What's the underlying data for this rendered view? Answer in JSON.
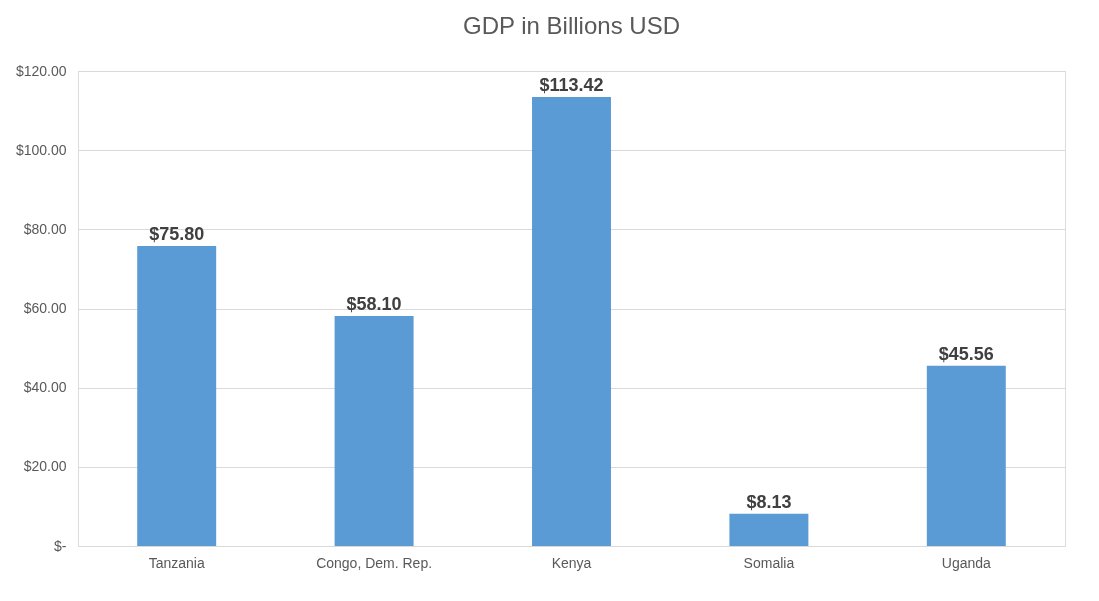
{
  "chart_data": {
    "type": "bar",
    "title": "GDP in Billions USD",
    "categories": [
      "Tanzania",
      "Congo, Dem. Rep.",
      "Kenya",
      "Somalia",
      "Uganda"
    ],
    "values": [
      75.8,
      58.1,
      113.42,
      8.13,
      45.56
    ],
    "value_labels": [
      "$75.80",
      "$58.10",
      "$113.42",
      "$8.13",
      "$45.56"
    ],
    "color": "#5b9bd5",
    "ylim": [
      0,
      120
    ],
    "yticks": [
      {
        "value": 0,
        "label": "$-"
      },
      {
        "value": 20,
        "label": "$20.00"
      },
      {
        "value": 40,
        "label": "$40.00"
      },
      {
        "value": 60,
        "label": "$60.00"
      },
      {
        "value": 80,
        "label": "$80.00"
      },
      {
        "value": 100,
        "label": "$100.00"
      },
      {
        "value": 120,
        "label": "$120.00"
      }
    ],
    "grid": "y"
  }
}
